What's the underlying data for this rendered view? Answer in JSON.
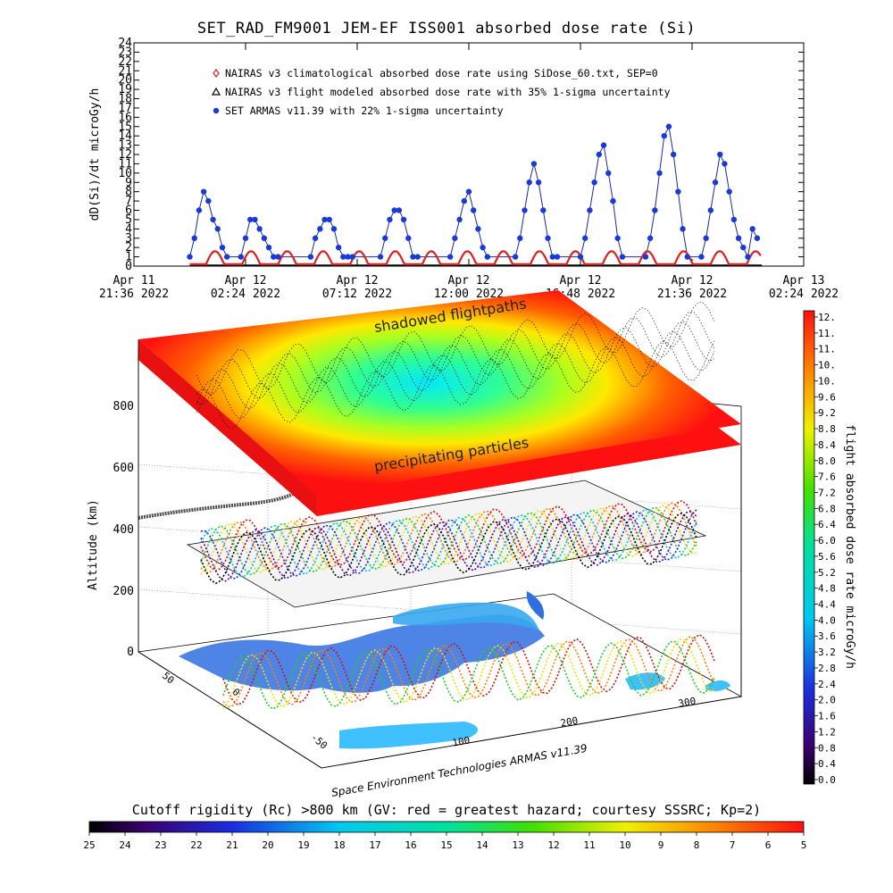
{
  "title": "SET_RAD_FM9001  JEM-EF ISS001 absorbed dose rate (Si)",
  "colors": {
    "nairas_climatological": "#e02020",
    "nairas_flight": "#000000",
    "set_armas": "#1a3ad8",
    "line": "#1a2a9a"
  },
  "chart_data": [
    {
      "type": "line",
      "title": "SET_RAD_FM9001  JEM-EF ISS001 absorbed dose rate (Si)",
      "ylabel": "dD(Si)/dt microGy/h",
      "xlabel": "",
      "ylim": [
        0,
        24
      ],
      "y_ticks": [
        "0",
        "1",
        "2",
        "3",
        "4",
        "5",
        "6",
        "7",
        "8",
        "9",
        "10",
        "11",
        "12",
        "13",
        "14",
        "15",
        "16",
        "17",
        "18",
        "19",
        "20",
        "21",
        "22",
        "23",
        "24"
      ],
      "x_ticks": [
        {
          "line1": "Apr 11",
          "line2": "21:36 2022"
        },
        {
          "line1": "Apr 12",
          "line2": "02:24 2022"
        },
        {
          "line1": "Apr 12",
          "line2": "07:12 2022"
        },
        {
          "line1": "Apr 12",
          "line2": "12:00 2022"
        },
        {
          "line1": "Apr 12",
          "line2": "16:48 2022"
        },
        {
          "line1": "Apr 12",
          "line2": "21:36 2022"
        },
        {
          "line1": "Apr 13",
          "line2": "02:24 2022"
        }
      ],
      "legend": [
        {
          "marker": "diamond",
          "label": "NAIRAS v3 climatological absorbed dose rate using SiDose_60.txt, SEP=0"
        },
        {
          "marker": "triangle",
          "label": "NAIRAS v3 flight modeled absorbed dose rate with 35% 1-sigma uncertainty"
        },
        {
          "marker": "circle",
          "label": "SET ARMAS v11.39 with 22% 1-sigma uncertainty"
        }
      ],
      "legend_position": "top-left",
      "series": [
        {
          "name": "SET ARMAS v11.39 with 22% 1-sigma uncertainty",
          "x_hours_from_first_tick": [
            2.4,
            2.6,
            2.8,
            3.0,
            3.2,
            3.4,
            3.6,
            3.8,
            4.0,
            4.6,
            4.8,
            5.0,
            5.2,
            5.4,
            5.6,
            5.8,
            6.0,
            6.2,
            7.6,
            7.8,
            8.0,
            8.2,
            8.4,
            8.6,
            8.8,
            9.0,
            9.2,
            9.4,
            10.6,
            10.8,
            11.0,
            11.2,
            11.4,
            11.6,
            11.8,
            12.0,
            12.2,
            13.6,
            13.8,
            14.0,
            14.2,
            14.4,
            14.6,
            14.8,
            15.0,
            15.2,
            16.4,
            16.6,
            16.8,
            17.0,
            17.2,
            17.4,
            17.6,
            17.8,
            18.0,
            18.2,
            19.2,
            19.4,
            19.6,
            19.8,
            20.0,
            20.2,
            20.4,
            20.6,
            20.8,
            21.0,
            22.0,
            22.2,
            22.4,
            22.6,
            22.8,
            23.0,
            23.2,
            23.4,
            23.6,
            23.8,
            24.4,
            24.6,
            24.8,
            25.0,
            25.2,
            25.4,
            25.6,
            25.8,
            26.0,
            26.2,
            26.4,
            26.6,
            26.8
          ],
          "values": [
            1,
            3,
            6,
            8,
            7,
            5,
            4,
            2,
            1,
            1,
            3,
            5,
            5,
            4,
            3,
            2,
            1,
            1,
            1,
            3,
            4,
            5,
            5,
            4,
            2,
            1,
            1,
            1,
            1,
            3,
            5,
            6,
            6,
            5,
            3,
            1,
            1,
            1,
            3,
            5,
            7,
            8,
            6,
            4,
            2,
            1,
            1,
            3,
            6,
            9,
            11,
            9,
            6,
            3,
            1,
            1,
            1,
            3,
            6,
            9,
            12,
            13,
            10,
            7,
            3,
            1,
            1,
            3,
            6,
            10,
            14,
            15,
            12,
            8,
            4,
            1,
            1,
            3,
            6,
            9,
            12,
            11,
            8,
            5,
            3,
            2,
            1,
            4,
            3
          ]
        },
        {
          "name": "NAIRAS v3 climatological absorbed dose rate using SiDose_60.txt, SEP=0",
          "type": "sinusoid",
          "baseline": 0.2,
          "amplitude": 1.4,
          "period_hours": 1.55,
          "x_range_hours": [
            2.4,
            27.0
          ]
        },
        {
          "name": "NAIRAS v3 flight modeled absorbed dose rate with 35% 1-sigma uncertainty",
          "values_constant": 0.1,
          "x_range_hours": [
            2.4,
            27.0
          ]
        }
      ]
    },
    {
      "type": "heatmap",
      "title": "",
      "zlabel": "Altitude (km)",
      "z_ticks": [
        "0",
        "200",
        "400",
        "600",
        "800"
      ],
      "latitude_ticks": [
        "-50",
        "0",
        "50"
      ],
      "longitude_ticks": [
        "100",
        "200",
        "300"
      ],
      "annotations": [
        "shadowed flightpaths",
        "precipitating particles"
      ],
      "credit": "Space Environment Technologies ARMAS v11.39",
      "colorbar_right": {
        "label": "flight absorbed dose rate microGy/h",
        "ticks": [
          "12.",
          "11.",
          "11.",
          "10.",
          "10.",
          "9.6",
          "9.2",
          "8.8",
          "8.4",
          "8.0",
          "7.6",
          "7.2",
          "6.8",
          "6.4",
          "6.0",
          "5.6",
          "5.2",
          "4.8",
          "4.4",
          "4.0",
          "3.6",
          "3.2",
          "2.8",
          "2.4",
          "2.0",
          "1.6",
          "1.2",
          "0.8",
          "0.4",
          "0.0"
        ]
      },
      "colorbar_bottom": {
        "label": "Cutoff rigidity (Rc) >800 km (GV: red = greatest hazard; courtesy SSSRC; Kp=2)",
        "ticks": [
          "25",
          "24",
          "23",
          "22",
          "21",
          "20",
          "19",
          "18",
          "17",
          "16",
          "15",
          "14",
          "13",
          "12",
          "11",
          "10",
          "9",
          "8",
          "7",
          "6",
          "5"
        ]
      }
    }
  ]
}
